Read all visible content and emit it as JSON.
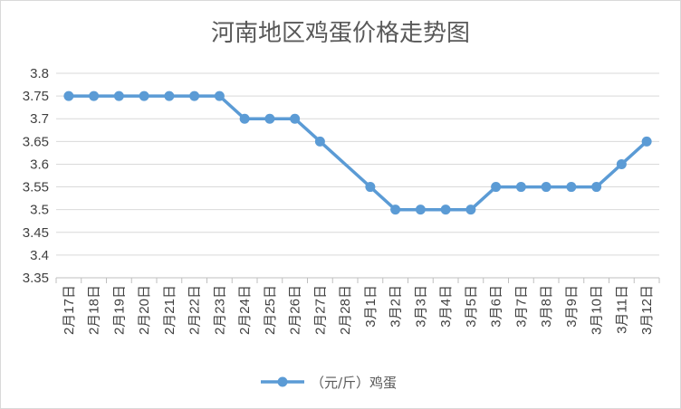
{
  "chart_data": {
    "type": "line",
    "title": "河南地区鸡蛋价格走势图",
    "categories": [
      "2月17日",
      "2月18日",
      "2月19日",
      "2月20日",
      "2月21日",
      "2月22日",
      "2月23日",
      "2月24日",
      "2月25日",
      "2月26日",
      "2月27日",
      "2月28日",
      "3月1日",
      "3月2日",
      "3月3日",
      "3月4日",
      "3月5日",
      "3月6日",
      "3月7日",
      "3月8日",
      "3月9日",
      "3月10日",
      "3月11日",
      "3月12日"
    ],
    "series": [
      {
        "name": "（元/斤）鸡蛋",
        "values": [
          3.75,
          3.75,
          3.75,
          3.75,
          3.75,
          3.75,
          3.75,
          3.7,
          3.7,
          3.7,
          3.65,
          null,
          3.55,
          3.5,
          3.5,
          3.5,
          3.5,
          3.55,
          3.55,
          3.55,
          3.55,
          3.55,
          3.6,
          3.65
        ],
        "color": "#5b9bd5"
      }
    ],
    "ylim": [
      3.35,
      3.8
    ],
    "yticks": [
      "3.8",
      "3.75",
      "3.7",
      "3.65",
      "3.6",
      "3.55",
      "3.5",
      "3.45",
      "3.4",
      "3.35"
    ],
    "ytick_values": [
      3.8,
      3.75,
      3.7,
      3.65,
      3.6,
      3.55,
      3.5,
      3.45,
      3.4,
      3.35
    ],
    "xlabel": "",
    "ylabel": "",
    "grid": true,
    "legend": "bottom-center",
    "gridline_color": "#d9d9d9",
    "axis_color": "#bfbfbf"
  }
}
